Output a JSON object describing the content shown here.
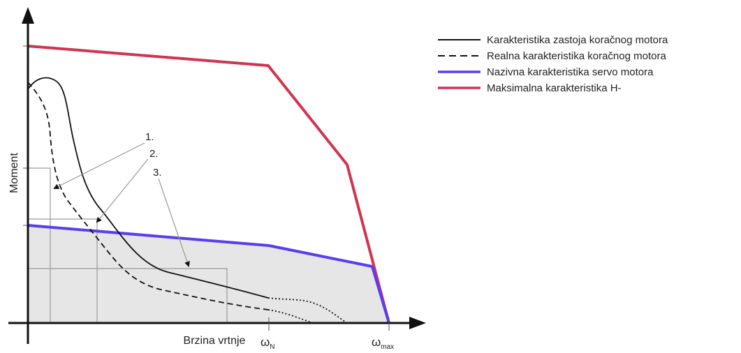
{
  "diagram": {
    "y_axis_label": "Moment",
    "x_axis_label": "Brzina vrtnje",
    "x_marks": [
      {
        "symbol": "ω",
        "subscript": "N"
      },
      {
        "symbol": "ω",
        "subscript": "max"
      }
    ],
    "annotations": [
      "1.",
      "2.",
      "3."
    ],
    "legend": [
      {
        "label": "Karakteristika zastoja koračnog motora",
        "color": "#111111",
        "style": "solid"
      },
      {
        "label": "Realna karakteristika koračnog motora",
        "color": "#111111",
        "style": "dashed"
      },
      {
        "label": "Nazivna karakteristika servo motora",
        "color": "#5a3df0",
        "style": "solid"
      },
      {
        "label": "Maksimalna karakteristika H-",
        "color": "#d1344f",
        "style": "solid"
      }
    ],
    "colors": {
      "max_curve": "#d1344f",
      "nominal_curve": "#5a3df0",
      "region_fill": "#e6e6e6",
      "axes": "#111111",
      "guides": "#9a9a9a"
    }
  }
}
